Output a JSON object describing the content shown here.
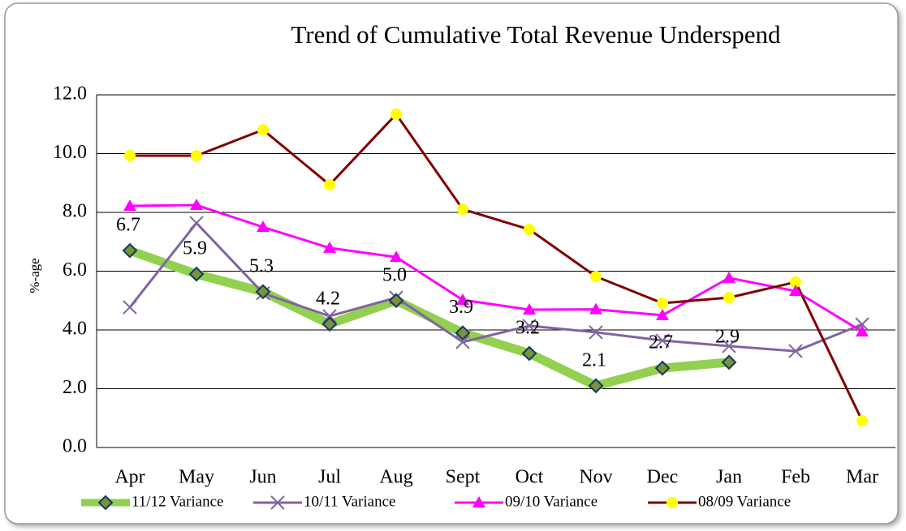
{
  "chart_data": {
    "type": "line",
    "title": "Trend of Cumulative Total Revenue Underspend",
    "y_label": "%-age",
    "categories": [
      "Apr",
      "May",
      "Jun",
      "Jul",
      "Aug",
      "Sept",
      "Oct",
      "Nov",
      "Dec",
      "Jan",
      "Feb",
      "Mar"
    ],
    "series": [
      {
        "name": "11/12 Variance",
        "color": "#92d050",
        "marker": "diamond",
        "values": [
          6.7,
          5.9,
          5.3,
          4.2,
          5.0,
          3.9,
          3.2,
          2.1,
          2.7,
          2.9,
          null,
          null
        ],
        "value_labels": [
          "6.7",
          "5.9",
          "5.3",
          "4.2",
          "5.0",
          "3.9",
          "3.2",
          "2.1",
          "2.7",
          "2.9",
          null,
          null
        ]
      },
      {
        "name": "10/11 Variance",
        "color": "#8064a2",
        "marker": "x",
        "values": [
          4.77,
          7.64,
          5.25,
          4.47,
          5.1,
          3.59,
          4.14,
          3.92,
          3.64,
          3.45,
          3.28,
          4.19
        ]
      },
      {
        "name": "09/10 Variance",
        "color": "#ff00ff",
        "marker": "triangle",
        "values": [
          8.22,
          8.25,
          7.5,
          6.79,
          6.48,
          5.02,
          4.69,
          4.7,
          4.5,
          5.77,
          5.32,
          3.94
        ]
      },
      {
        "name": "08/09 Variance",
        "color": "#800000",
        "marker": "circle",
        "values": [
          9.93,
          9.93,
          10.81,
          8.94,
          11.34,
          8.11,
          7.42,
          5.82,
          4.91,
          5.1,
          5.63,
          0.91
        ]
      }
    ],
    "ylim": [
      0,
      12
    ],
    "yticks": [
      {
        "value": 0,
        "label": "0.0"
      },
      {
        "value": 2,
        "label": "2.0"
      },
      {
        "value": 4,
        "label": "4.0"
      },
      {
        "value": 6,
        "label": "6.0"
      },
      {
        "value": 8,
        "label": "8.0"
      },
      {
        "value": 10,
        "label": "10.0"
      },
      {
        "value": 12,
        "label": "12.0"
      }
    ],
    "grid": true,
    "legend": "bottom"
  }
}
